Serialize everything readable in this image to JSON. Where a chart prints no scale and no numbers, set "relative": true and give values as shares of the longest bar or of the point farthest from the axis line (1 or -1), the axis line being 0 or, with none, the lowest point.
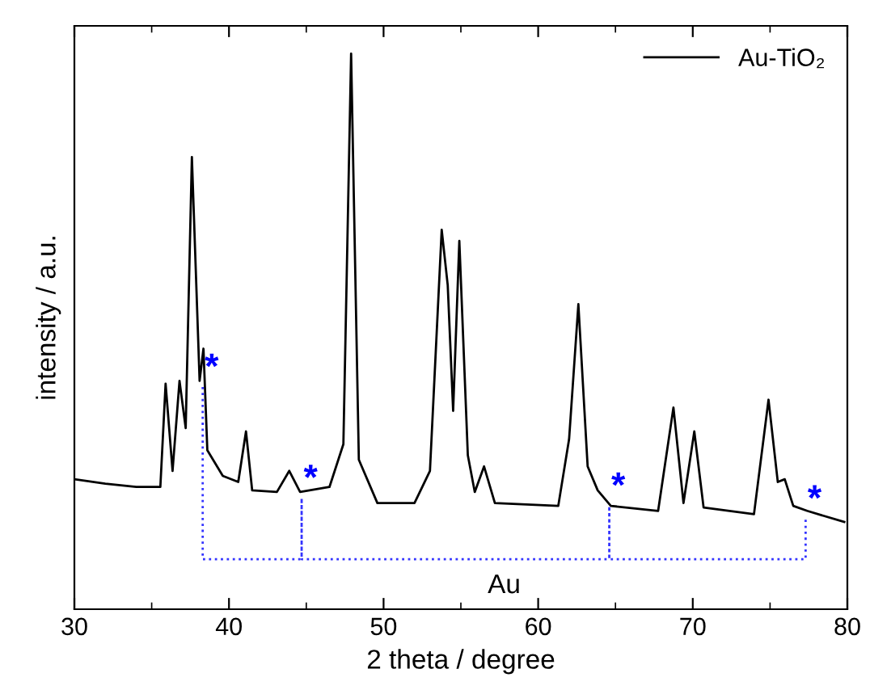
{
  "chart_data": {
    "type": "line",
    "relative": true,
    "xlabel": "2 theta / degree",
    "ylabel": "intensity / a.u.",
    "xlim": [
      30,
      80
    ],
    "xticks": [
      30,
      40,
      50,
      60,
      70,
      80
    ],
    "tick_labels": "x",
    "legend": "top right",
    "grid": false,
    "marker": "none",
    "line_style": "solid",
    "series": [
      {
        "name": "Au-TiO₂",
        "color": "#000000",
        "x": [
          30,
          32,
          34,
          35.56,
          35.9,
          36.35,
          36.8,
          37.2,
          37.6,
          38.1,
          38.35,
          38.6,
          39.6,
          40.6,
          41.1,
          41.5,
          43.1,
          43.9,
          44.6,
          46.5,
          47.4,
          47.9,
          48.4,
          49.6,
          52,
          53.0,
          53.76,
          54.15,
          54.5,
          54.9,
          55.45,
          55.9,
          56.5,
          57.2,
          61.3,
          62.0,
          62.6,
          63.2,
          63.85,
          64.7,
          67.76,
          68.75,
          69.4,
          70.1,
          70.7,
          73.96,
          74.9,
          75.5,
          75.95,
          76.5,
          77.4,
          79.8
        ],
        "values": [
          0.234,
          0.226,
          0.22,
          0.22,
          0.406,
          0.249,
          0.411,
          0.326,
          0.814,
          0.411,
          0.469,
          0.286,
          0.24,
          0.229,
          0.32,
          0.214,
          0.211,
          0.249,
          0.211,
          0.22,
          0.297,
          1,
          0.269,
          0.191,
          0.191,
          0.249,
          0.683,
          0.583,
          0.357,
          0.663,
          0.277,
          0.211,
          0.257,
          0.191,
          0.186,
          0.306,
          0.549,
          0.257,
          0.214,
          0.186,
          0.177,
          0.363,
          0.191,
          0.32,
          0.183,
          0.171,
          0.377,
          0.229,
          0.234,
          0.186,
          0.177,
          0.157
        ]
      },
      {
        "color": "#3333ff",
        "line_style": "dotted",
        "x": [
          38.3,
          38.3,
          44.7,
          44.7,
          44.7,
          64.6,
          64.6,
          64.6,
          77.3,
          77.3
        ],
        "values": [
          0.4,
          0.09,
          0.09,
          0.2,
          0.09,
          0.09,
          0.186,
          0.09,
          0.09,
          0.163
        ]
      }
    ],
    "annotations": [
      "*",
      "*",
      "*",
      "*",
      "Au"
    ]
  }
}
